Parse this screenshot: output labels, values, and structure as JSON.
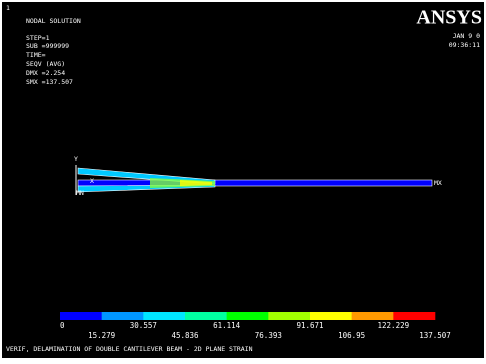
{
  "header": {
    "window_number": "1",
    "title": "NODAL SOLUTION",
    "step": "STEP=1",
    "sub": "SUB =999999",
    "time": "TIME=",
    "result": "SEQV     (AVG)",
    "dmx": "DMX =2.254",
    "smx": "SMX =137.507",
    "logo": "ANSYS",
    "date": "JAN  9  0",
    "clock": "09:36:11"
  },
  "axis_labels": {
    "y": "Y",
    "x": "X",
    "min": "MN",
    "max": "MX"
  },
  "legend": {
    "labels": [
      "0",
      "15.279",
      "30.557",
      "45.836",
      "61.114",
      "76.393",
      "91.671",
      "106.95",
      "122.229",
      "137.507"
    ],
    "colors": [
      "#0000ff",
      "#0096ff",
      "#00e6ff",
      "#00ffa0",
      "#00ff00",
      "#a0ff00",
      "#ffff00",
      "#ff9900",
      "#ff0000"
    ]
  },
  "footer": "VERIF, DELAMINATION OF DOUBLE CANTILEVER BEAM - 2D PLANE STRAIN"
}
